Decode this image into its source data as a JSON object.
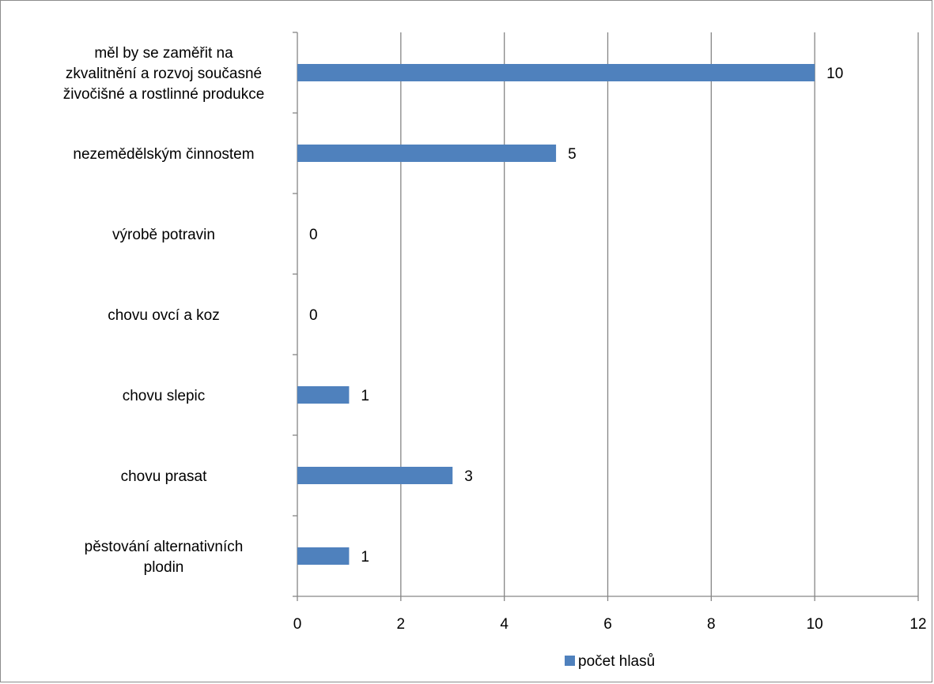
{
  "chart_data": {
    "type": "bar",
    "orientation": "horizontal",
    "categories": [
      "měl by se zaměřit na zkvalitnění a rozvoj současné živočišné a rostlinné produkce",
      "nezemědělským činnostem",
      "výrobě potravin",
      "chovu ovcí a koz",
      "chovu slepic",
      "chovu prasat",
      "pěstování alternativních plodin"
    ],
    "category_lines": [
      [
        "měl by se zaměřit na",
        "zkvalitnění a rozvoj současné",
        "živočišné a rostlinné produkce"
      ],
      [
        "nezemědělským činnostem"
      ],
      [
        "výrobě potravin"
      ],
      [
        "chovu ovcí a koz"
      ],
      [
        "chovu slepic"
      ],
      [
        "chovu prasat"
      ],
      [
        "pěstování alternativních",
        "plodin"
      ]
    ],
    "series": [
      {
        "name": "počet hlasů",
        "values": [
          10,
          5,
          0,
          0,
          1,
          3,
          1
        ],
        "color": "#4f81bd"
      }
    ],
    "xlim": [
      0,
      12
    ],
    "xticks": [
      0,
      2,
      4,
      6,
      8,
      10,
      12
    ],
    "grid": true,
    "legend_position": "bottom",
    "title": "",
    "xlabel": "",
    "ylabel": ""
  }
}
